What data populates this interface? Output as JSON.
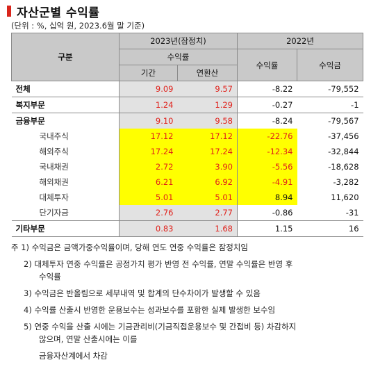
{
  "title": "자산군별 수익률",
  "unit_note": "(단위 : %, 십억 원, 2023.6월 말 기준)",
  "headers": {
    "gubun": "구분",
    "y2023": "2023년(잠정치)",
    "y2022": "2022년",
    "suikryul": "수익률",
    "gigan": "기간",
    "yeonhwan": "연환산",
    "suikryul_2022": "수익률",
    "suikgeum": "수익금"
  },
  "rows": [
    {
      "label": "전체",
      "gigan": "9.09",
      "yeonhwan": "9.57",
      "r2022": "-8.22",
      "amt2022": "-79,552"
    },
    {
      "label": "복지부문",
      "gigan": "1.24",
      "yeonhwan": "1.29",
      "r2022": "-0.27",
      "amt2022": "-1"
    },
    {
      "label": "금융부문",
      "gigan": "9.10",
      "yeonhwan": "9.58",
      "r2022": "-8.24",
      "amt2022": "-79,567"
    },
    {
      "label": "국내주식",
      "gigan": "17.12",
      "yeonhwan": "17.12",
      "r2022": "-22.76",
      "amt2022": "-37,456"
    },
    {
      "label": "해외주식",
      "gigan": "17.24",
      "yeonhwan": "17.24",
      "r2022": "-12.34",
      "amt2022": "-32,844"
    },
    {
      "label": "국내채권",
      "gigan": "2.72",
      "yeonhwan": "3.90",
      "r2022": "-5.56",
      "amt2022": "-18,628"
    },
    {
      "label": "해외채권",
      "gigan": "6.21",
      "yeonhwan": "6.92",
      "r2022": "-4.91",
      "amt2022": "-3,282"
    },
    {
      "label": "대체투자",
      "gigan": "5.01",
      "yeonhwan": "5.01",
      "r2022": "8.94",
      "amt2022": "11,620"
    },
    {
      "label": "단기자금",
      "gigan": "2.76",
      "yeonhwan": "2.77",
      "r2022": "-0.86",
      "amt2022": "-31"
    },
    {
      "label": "기타부문",
      "gigan": "0.83",
      "yeonhwan": "1.68",
      "r2022": "1.15",
      "amt2022": "16"
    }
  ],
  "footnotes": {
    "n1": "주 1) 수익금은 금액가중수익률이며, 당해 연도 연중 수익률은 잠정치임",
    "n2a": "2) 대체투자 연중 수익률은 공정가치 평가 반영 전 수익률, 연말 수익률은 반영 후",
    "n2b": "수익률",
    "n3": "3) 수익금은 반올림으로 세부내역 및 합계의 단수차이가 발생할 수 있음",
    "n4": "4) 수익률 산출시 반영한 운용보수는 성과보수를 포함한 실제 발생한 보수임",
    "n5a": "5) 연중 수익을 산출 시에는 기금관리비(기금직접운용보수 및 간접비 등) 차감하지",
    "n5b": "않으며, 연말 산출시에는 이를",
    "n5c": "금융자산계에서 차감"
  },
  "colors": {
    "accent_red": "#d9251c",
    "value_red": "#e0201a",
    "header_gray": "#c9c9c9",
    "cell_gray": "#e2e2e2",
    "highlight_yellow": "#ffff00"
  }
}
